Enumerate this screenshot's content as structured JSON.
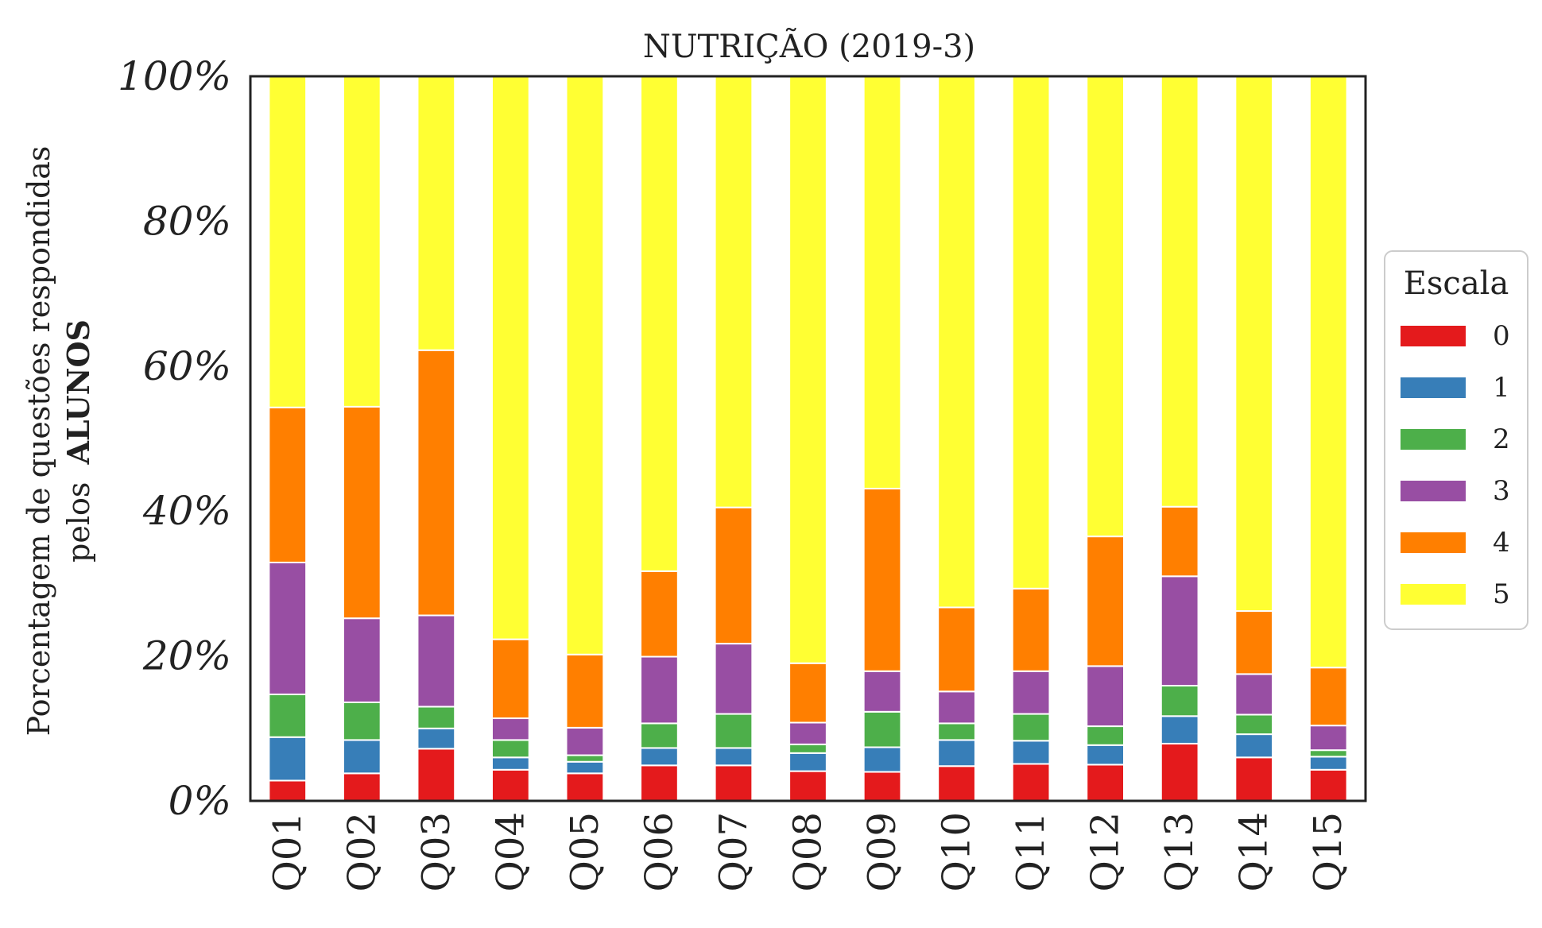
{
  "chart_data": {
    "type": "bar",
    "stacked": true,
    "title": "NUTRIÇÃO (2019-3)",
    "ylabel_line1": "Porcentagem de questões respondidas",
    "ylabel_line2_prefix": "pelos",
    "ylabel_line2_bold": "ALUNOS",
    "ylim": [
      0,
      100
    ],
    "yticks": [
      "0%",
      "20%",
      "40%",
      "60%",
      "80%",
      "100%"
    ],
    "ytick_values": [
      0,
      20,
      40,
      60,
      80,
      100
    ],
    "categories": [
      "Q01",
      "Q02",
      "Q03",
      "Q04",
      "Q05",
      "Q06",
      "Q07",
      "Q08",
      "Q09",
      "Q10",
      "Q11",
      "Q12",
      "Q13",
      "Q14",
      "Q15"
    ],
    "legend": {
      "title": "Escala",
      "position": "right"
    },
    "series": [
      {
        "name": "0",
        "color": "#e41a1c",
        "values": [
          2.8,
          3.8,
          7.2,
          4.3,
          3.8,
          4.9,
          4.9,
          4.1,
          4.0,
          4.8,
          5.1,
          5.0,
          7.9,
          6.0,
          4.3
        ]
      },
      {
        "name": "1",
        "color": "#377eb8",
        "values": [
          6.0,
          4.6,
          2.8,
          1.7,
          1.6,
          2.4,
          2.4,
          2.5,
          3.4,
          3.6,
          3.2,
          2.7,
          3.8,
          3.2,
          1.8
        ]
      },
      {
        "name": "2",
        "color": "#4daf4a",
        "values": [
          5.9,
          5.2,
          3.0,
          2.4,
          0.9,
          3.4,
          4.7,
          1.2,
          4.9,
          2.3,
          3.7,
          2.6,
          4.2,
          2.7,
          0.9
        ]
      },
      {
        "name": "3",
        "color": "#984ea3",
        "values": [
          18.2,
          11.6,
          12.6,
          3.0,
          3.8,
          9.2,
          9.7,
          3.0,
          5.6,
          4.4,
          5.9,
          8.3,
          15.1,
          5.6,
          3.4
        ]
      },
      {
        "name": "4",
        "color": "#ff7f00",
        "values": [
          21.4,
          29.2,
          36.6,
          10.9,
          10.1,
          11.8,
          18.8,
          8.2,
          25.2,
          11.6,
          11.4,
          17.9,
          9.6,
          8.7,
          8.0
        ]
      },
      {
        "name": "5",
        "color": "#ffff33",
        "values": [
          45.7,
          45.6,
          37.8,
          77.7,
          79.8,
          68.3,
          59.5,
          81.0,
          56.9,
          73.3,
          70.7,
          63.5,
          59.4,
          73.8,
          81.6
        ]
      }
    ]
  }
}
